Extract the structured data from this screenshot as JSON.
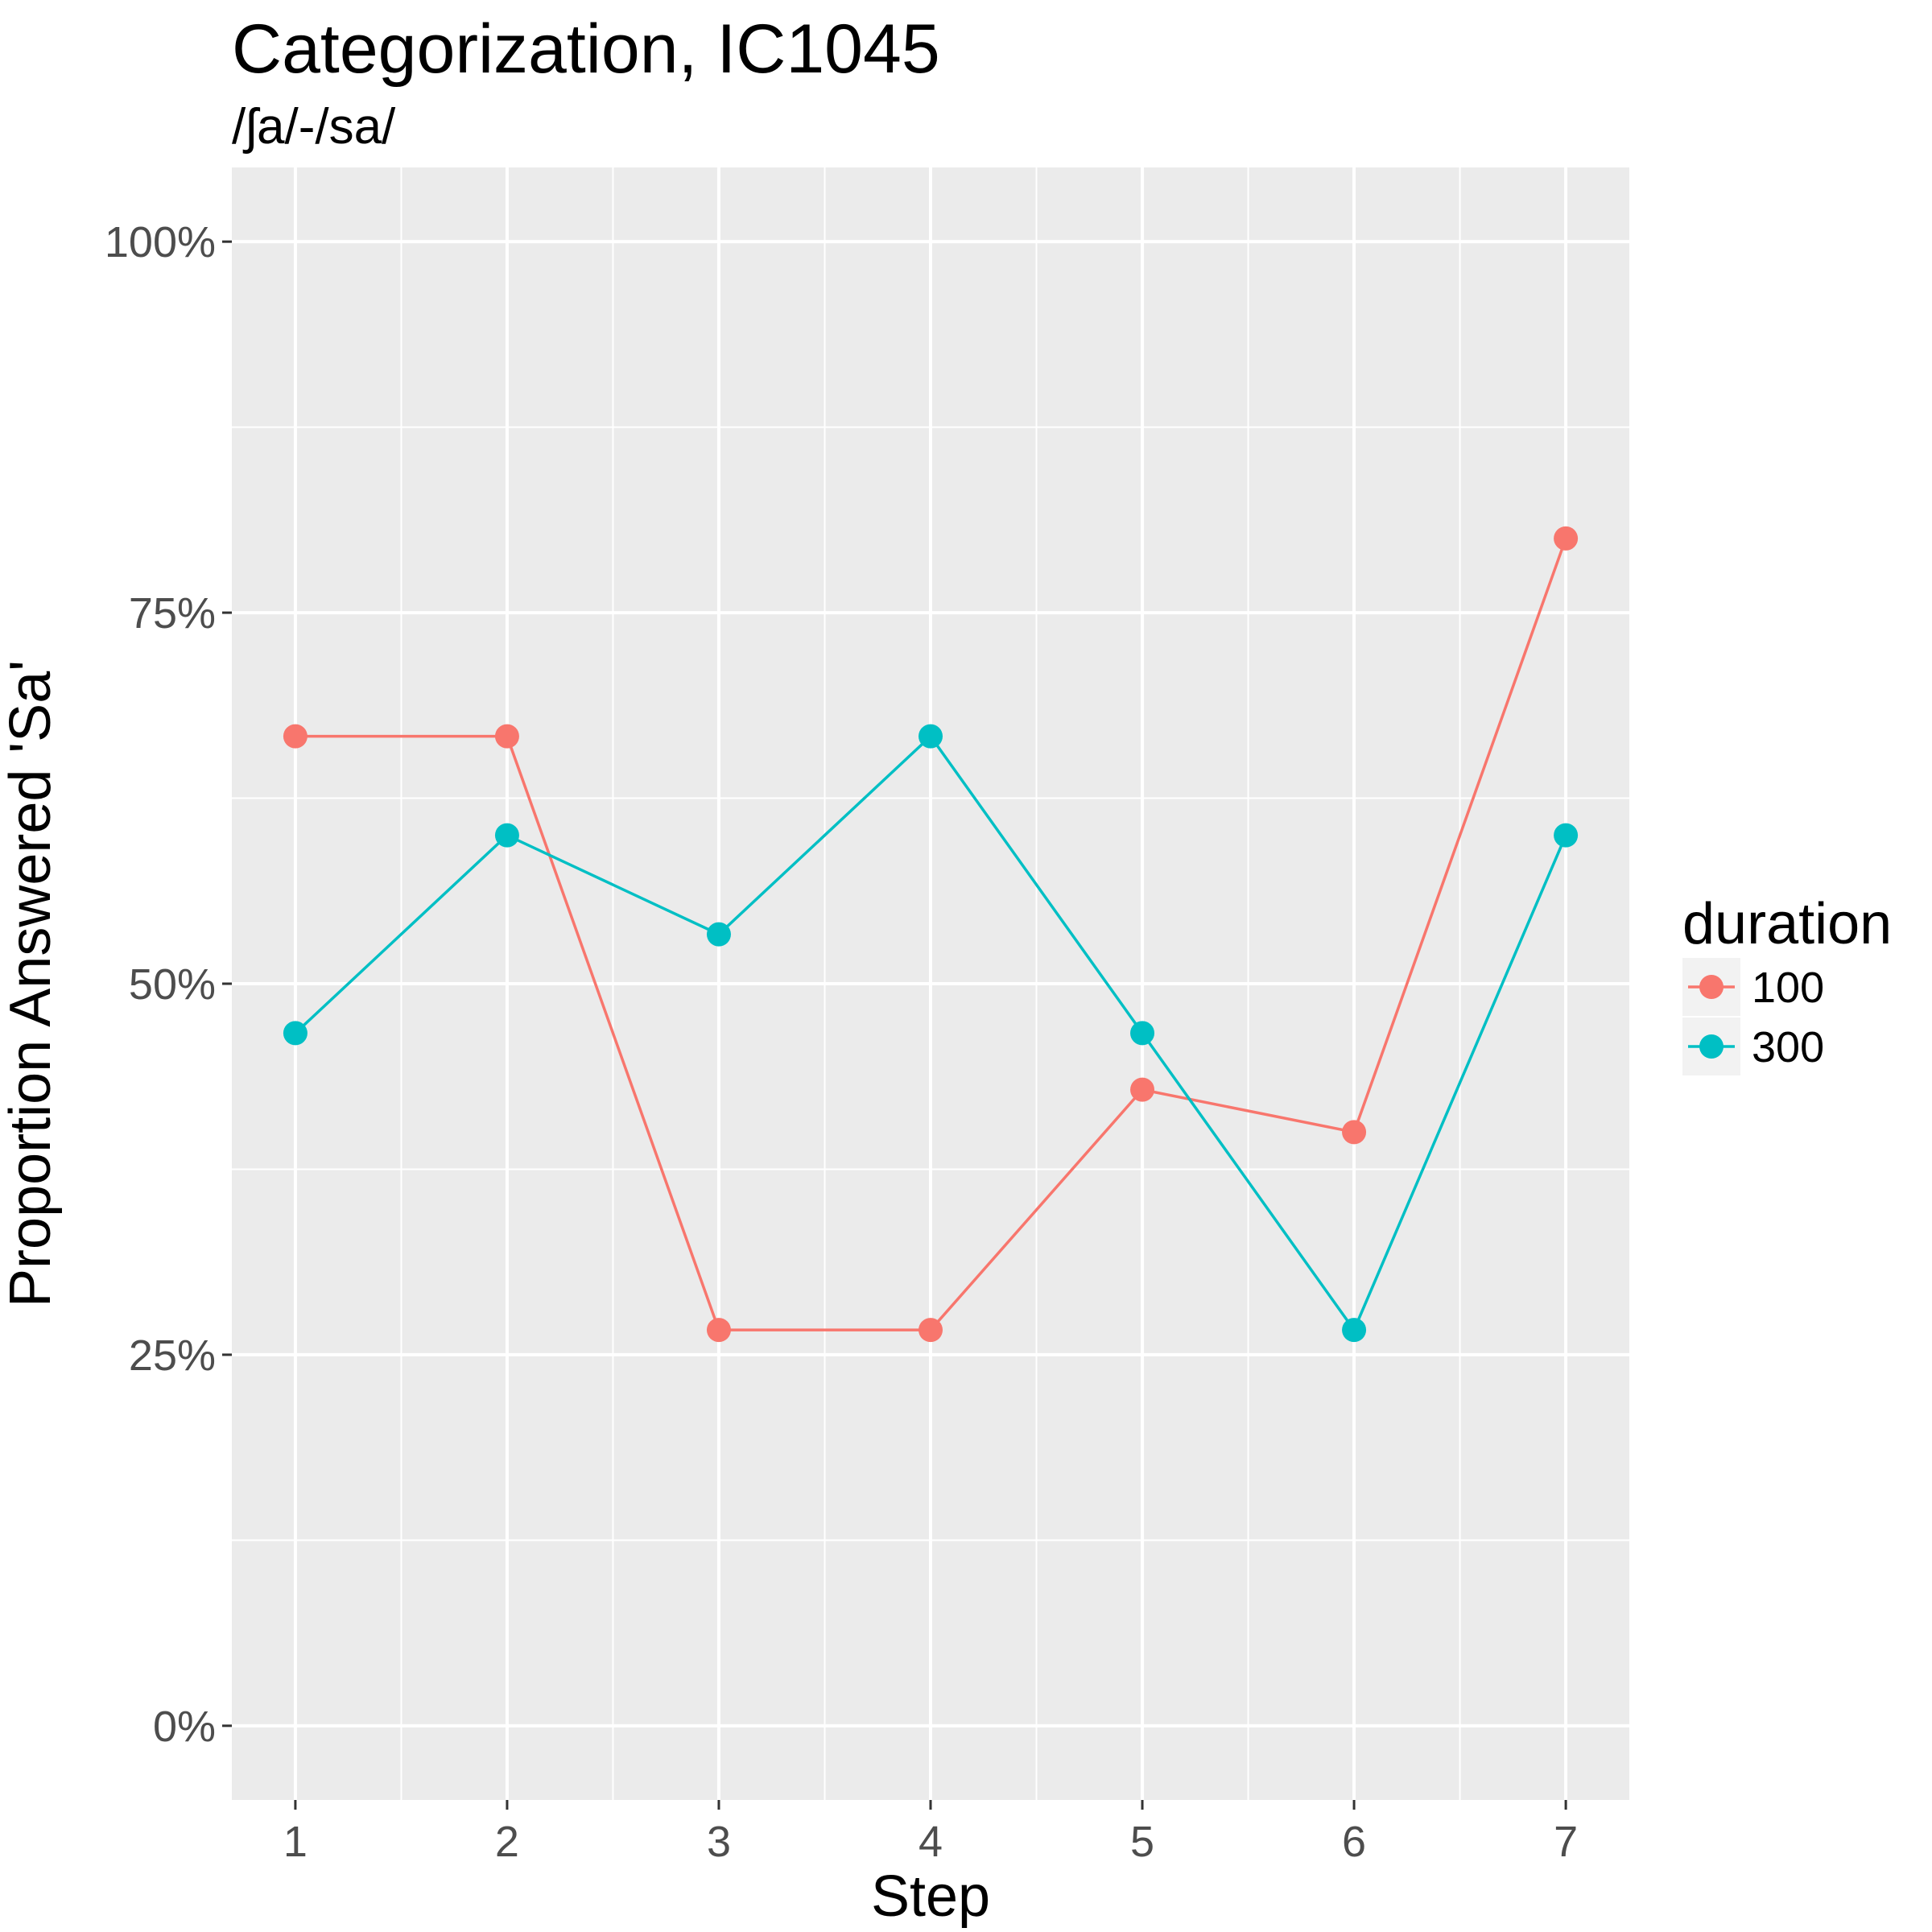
{
  "chart_data": {
    "type": "line",
    "title": "Categorization, IC1045",
    "subtitle": "/ʃa/-/sa/",
    "xlabel": "Step",
    "ylabel": "Proportion Answered 'Sa'",
    "x": [
      1,
      2,
      3,
      4,
      5,
      6,
      7
    ],
    "x_ticks": [
      "1",
      "2",
      "3",
      "4",
      "5",
      "6",
      "7"
    ],
    "xlim": [
      0.7,
      7.3
    ],
    "ylim": [
      -0.05,
      1.05
    ],
    "y_ticks": [
      0,
      0.25,
      0.5,
      0.75,
      1.0
    ],
    "y_tick_labels": [
      "0%",
      "25%",
      "50%",
      "75%",
      "100%"
    ],
    "grid": true,
    "legend": {
      "title": "duration",
      "position": "right"
    },
    "series": [
      {
        "name": "100",
        "color": "#F8766D",
        "values": [
          0.6667,
          0.6667,
          0.2667,
          0.2667,
          0.4286,
          0.4,
          0.8
        ]
      },
      {
        "name": "300",
        "color": "#00BFC4",
        "values": [
          0.4667,
          0.6,
          0.5333,
          0.6667,
          0.4667,
          0.2667,
          0.6
        ]
      }
    ]
  }
}
